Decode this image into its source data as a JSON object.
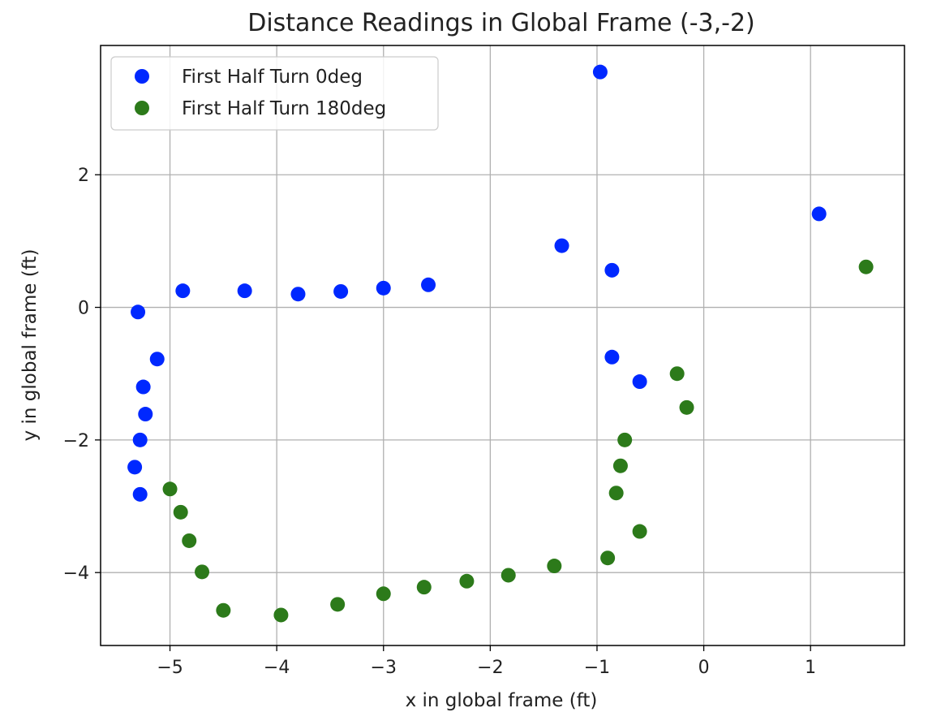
{
  "chart_data": {
    "type": "scatter",
    "title": "Distance Readings in Global Frame (-3,-2)",
    "xlabel": "x in global frame (ft)",
    "ylabel": "y in global frame (ft)",
    "xlim": [
      -5.65,
      1.88
    ],
    "ylim": [
      -5.1,
      3.95
    ],
    "xticks": [
      -5,
      -4,
      -3,
      -2,
      -1,
      0,
      1
    ],
    "yticks": [
      -4,
      -2,
      0,
      2
    ],
    "grid": true,
    "legend_position": "top-left",
    "series": [
      {
        "name": "First Half Turn 0deg",
        "color": "#0028ff",
        "points": [
          [
            -0.97,
            3.55
          ],
          [
            1.08,
            1.41
          ],
          [
            -1.33,
            0.93
          ],
          [
            -0.86,
            0.56
          ],
          [
            -2.58,
            0.34
          ],
          [
            -3.0,
            0.29
          ],
          [
            -3.4,
            0.24
          ],
          [
            -3.8,
            0.2
          ],
          [
            -4.3,
            0.25
          ],
          [
            -4.88,
            0.25
          ],
          [
            -5.3,
            -0.07
          ],
          [
            -5.12,
            -0.78
          ],
          [
            -5.25,
            -1.2
          ],
          [
            -5.23,
            -1.61
          ],
          [
            -5.28,
            -2.0
          ],
          [
            -5.33,
            -2.41
          ],
          [
            -5.28,
            -2.82
          ],
          [
            -0.86,
            -0.75
          ],
          [
            -0.6,
            -1.12
          ]
        ]
      },
      {
        "name": "First Half Turn 180deg",
        "color": "#2c7a1a",
        "points": [
          [
            1.52,
            0.61
          ],
          [
            -0.25,
            -1.0
          ],
          [
            -0.16,
            -1.51
          ],
          [
            -0.74,
            -2.0
          ],
          [
            -0.78,
            -2.39
          ],
          [
            -0.82,
            -2.8
          ],
          [
            -0.6,
            -3.38
          ],
          [
            -0.9,
            -3.78
          ],
          [
            -1.4,
            -3.9
          ],
          [
            -1.83,
            -4.04
          ],
          [
            -2.22,
            -4.13
          ],
          [
            -2.62,
            -4.22
          ],
          [
            -3.0,
            -4.32
          ],
          [
            -3.43,
            -4.48
          ],
          [
            -3.96,
            -4.64
          ],
          [
            -4.5,
            -4.57
          ],
          [
            -4.7,
            -3.99
          ],
          [
            -4.82,
            -3.52
          ],
          [
            -4.9,
            -3.09
          ],
          [
            -5.0,
            -2.74
          ]
        ]
      }
    ]
  }
}
